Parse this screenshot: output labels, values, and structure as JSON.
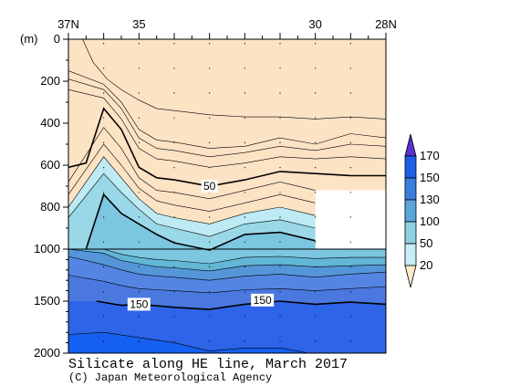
{
  "chart_data": {
    "type": "contour",
    "title": "Silicate along HE line, March 2017",
    "credit": "(C) Japan Meteorological Agency",
    "x_unit_label": "",
    "y_unit_label": "(m)",
    "x_ticks": [
      {
        "lat": 37,
        "label": "37N"
      },
      {
        "lat": 35,
        "label": "35"
      },
      {
        "lat": 30,
        "label": "30"
      },
      {
        "lat": 28,
        "label": "28N"
      }
    ],
    "x_range": [
      37,
      28
    ],
    "y_ticks_upper": [
      0,
      200,
      400,
      600,
      800,
      1000
    ],
    "y_ticks_lower": [
      1500,
      2000
    ],
    "y_range": [
      0,
      2000
    ],
    "stations_lat": [
      36.0,
      35.0,
      34.0,
      33.0,
      32.0,
      31.0,
      30.0,
      29.0
    ],
    "levels": [
      20,
      50,
      100,
      130,
      150,
      170
    ],
    "level_colors": [
      "#FDE8C8",
      "#C7EDF5",
      "#8ED1E3",
      "#5CA6DC",
      "#3A7FE0",
      "#1F5EE8",
      "#5B2FD0"
    ],
    "legend_labels": [
      "170",
      "150",
      "130",
      "100",
      "50",
      "20"
    ],
    "band_colors": [
      "#FCE3C4",
      "#BDEAF3",
      "#9AD8E8",
      "#7CC6E0",
      "#62B6D6",
      "#5496D8",
      "#5585E2",
      "#4A78DF",
      "#2E64E8",
      "#1560F0"
    ],
    "contour_labels": [
      {
        "text": "50",
        "lat": 33.0,
        "depth": 700
      },
      {
        "text": "150",
        "lat": 35.0,
        "depth": 1530
      },
      {
        "text": "150",
        "lat": 31.5,
        "depth": 1490
      }
    ],
    "contours": [
      {
        "value": 20,
        "bold": false,
        "points": [
          [
            36.6,
            0
          ],
          [
            36.3,
            110
          ],
          [
            35.9,
            190
          ],
          [
            35.5,
            240
          ],
          [
            35.0,
            290
          ],
          [
            34.5,
            330
          ],
          [
            34.0,
            340
          ],
          [
            33.0,
            360
          ],
          [
            32.0,
            370
          ],
          [
            31.0,
            370
          ],
          [
            30.0,
            380
          ],
          [
            29.0,
            370
          ],
          [
            28.0,
            380
          ]
        ]
      },
      {
        "value": 30,
        "bold": false,
        "points": [
          [
            37.0,
            150
          ],
          [
            36.0,
            215
          ],
          [
            35.5,
            300
          ],
          [
            35.0,
            430
          ],
          [
            34.5,
            480
          ],
          [
            34.0,
            490
          ],
          [
            33.0,
            520
          ],
          [
            32.0,
            510
          ],
          [
            31.0,
            470
          ],
          [
            30.0,
            500
          ],
          [
            29.0,
            450
          ],
          [
            28.0,
            470
          ]
        ]
      },
      {
        "value": 40,
        "bold": false,
        "points": [
          [
            37.0,
            190
          ],
          [
            36.0,
            240
          ],
          [
            35.5,
            330
          ],
          [
            35.0,
            470
          ],
          [
            34.5,
            520
          ],
          [
            34.0,
            530
          ],
          [
            33.0,
            560
          ],
          [
            32.0,
            540
          ],
          [
            31.0,
            510
          ],
          [
            30.0,
            530
          ],
          [
            29.0,
            500
          ],
          [
            28.0,
            510
          ]
        ]
      },
      {
        "value": 45,
        "bold": false,
        "points": [
          [
            37.0,
            240
          ],
          [
            36.0,
            280
          ],
          [
            35.5,
            380
          ],
          [
            35.0,
            520
          ],
          [
            34.5,
            570
          ],
          [
            34.0,
            580
          ],
          [
            33.0,
            610
          ],
          [
            32.0,
            590
          ],
          [
            31.0,
            560
          ],
          [
            30.0,
            570
          ],
          [
            29.0,
            560
          ],
          [
            28.0,
            570
          ]
        ]
      },
      {
        "value": 50,
        "bold": true,
        "points": [
          [
            37.0,
            610
          ],
          [
            36.5,
            590
          ],
          [
            36.0,
            330
          ],
          [
            35.5,
            430
          ],
          [
            35.0,
            610
          ],
          [
            34.5,
            660
          ],
          [
            34.0,
            670
          ],
          [
            33.0,
            700
          ],
          [
            32.0,
            670
          ],
          [
            31.0,
            630
          ],
          [
            30.0,
            640
          ],
          [
            29.0,
            650
          ],
          [
            28.0,
            650
          ]
        ]
      },
      {
        "value": 60,
        "bold": false,
        "points": [
          [
            37.0,
            680
          ],
          [
            36.0,
            420
          ],
          [
            35.5,
            520
          ],
          [
            35.0,
            660
          ],
          [
            34.5,
            720
          ],
          [
            34.0,
            730
          ],
          [
            33.0,
            760
          ],
          [
            32.0,
            720
          ],
          [
            31.0,
            680
          ],
          [
            30.0,
            720
          ]
        ]
      },
      {
        "value": 70,
        "bold": false,
        "points": [
          [
            37.0,
            740
          ],
          [
            36.0,
            500
          ],
          [
            35.5,
            600
          ],
          [
            35.0,
            710
          ],
          [
            34.5,
            770
          ],
          [
            34.0,
            790
          ],
          [
            33.0,
            820
          ],
          [
            32.0,
            780
          ],
          [
            31.0,
            740
          ],
          [
            30.0,
            780
          ]
        ]
      },
      {
        "value": 80,
        "bold": false,
        "points": [
          [
            37.0,
            800
          ],
          [
            36.0,
            560
          ],
          [
            35.5,
            660
          ],
          [
            35.0,
            760
          ],
          [
            34.5,
            830
          ],
          [
            34.0,
            850
          ],
          [
            33.0,
            880
          ],
          [
            32.0,
            830
          ],
          [
            31.0,
            800
          ],
          [
            30.0,
            840
          ]
        ]
      },
      {
        "value": 90,
        "bold": false,
        "points": [
          [
            37.0,
            850
          ],
          [
            36.0,
            640
          ],
          [
            35.5,
            730
          ],
          [
            35.0,
            810
          ],
          [
            34.5,
            880
          ],
          [
            34.0,
            900
          ],
          [
            33.0,
            940
          ],
          [
            32.0,
            880
          ],
          [
            31.0,
            860
          ],
          [
            30.0,
            900
          ]
        ]
      },
      {
        "value": 100,
        "bold": true,
        "points": [
          [
            36.5,
            1000
          ],
          [
            36.0,
            740
          ],
          [
            35.5,
            830
          ],
          [
            35.0,
            880
          ],
          [
            34.5,
            930
          ],
          [
            34.0,
            970
          ],
          [
            33.0,
            1010
          ],
          [
            32.0,
            930
          ],
          [
            31.0,
            920
          ],
          [
            30.0,
            960
          ]
        ]
      },
      {
        "value": 110,
        "bold": false,
        "points": [
          [
            37.0,
            1000
          ],
          [
            36.0,
            1000
          ],
          [
            35.5,
            1050
          ],
          [
            35.0,
            1080
          ],
          [
            34.5,
            1100
          ],
          [
            34.0,
            1110
          ],
          [
            33.0,
            1140
          ],
          [
            32.0,
            1080
          ],
          [
            31.0,
            1070
          ],
          [
            30.0,
            1090
          ],
          [
            29.0,
            1080
          ],
          [
            28.0,
            1080
          ]
        ]
      },
      {
        "value": 120,
        "bold": false,
        "points": [
          [
            37.0,
            1000
          ],
          [
            36.0,
            1040
          ],
          [
            35.5,
            1110
          ],
          [
            35.0,
            1140
          ],
          [
            34.5,
            1170
          ],
          [
            34.0,
            1180
          ],
          [
            33.0,
            1210
          ],
          [
            32.0,
            1160
          ],
          [
            31.0,
            1150
          ],
          [
            30.0,
            1170
          ],
          [
            29.0,
            1160
          ],
          [
            28.0,
            1150
          ]
        ]
      },
      {
        "value": 130,
        "bold": false,
        "points": [
          [
            37.0,
            1070
          ],
          [
            36.0,
            1150
          ],
          [
            35.5,
            1200
          ],
          [
            35.0,
            1240
          ],
          [
            34.5,
            1260
          ],
          [
            34.0,
            1270
          ],
          [
            33.0,
            1300
          ],
          [
            32.0,
            1260
          ],
          [
            31.0,
            1240
          ],
          [
            30.0,
            1270
          ],
          [
            29.0,
            1240
          ],
          [
            28.0,
            1220
          ]
        ]
      },
      {
        "value": 140,
        "bold": false,
        "points": [
          [
            37.0,
            1250
          ],
          [
            36.0,
            1310
          ],
          [
            35.5,
            1350
          ],
          [
            35.0,
            1380
          ],
          [
            34.5,
            1390
          ],
          [
            34.0,
            1400
          ],
          [
            33.0,
            1420
          ],
          [
            32.0,
            1390
          ],
          [
            31.0,
            1380
          ],
          [
            30.0,
            1400
          ],
          [
            29.0,
            1380
          ],
          [
            28.0,
            1360
          ]
        ]
      },
      {
        "value": 150,
        "bold": true,
        "points": [
          [
            36.2,
            1500
          ],
          [
            35.5,
            1540
          ],
          [
            35.0,
            1530
          ],
          [
            34.0,
            1560
          ],
          [
            33.0,
            1580
          ],
          [
            32.0,
            1530
          ],
          [
            31.0,
            1500
          ],
          [
            30.0,
            1530
          ],
          [
            29.0,
            1510
          ],
          [
            28.0,
            1530
          ]
        ]
      },
      {
        "value": 155,
        "bold": false,
        "points": [
          [
            37.0,
            1820
          ],
          [
            36.0,
            1800
          ],
          [
            35.0,
            1850
          ],
          [
            34.0,
            1900
          ],
          [
            33.0,
            1980
          ],
          [
            32.0,
            1950
          ],
          [
            31.0,
            1950
          ],
          [
            30.5,
            1980
          ],
          [
            30.2,
            2000
          ]
        ]
      }
    ],
    "mask": {
      "lat_from": 30.0,
      "lat_to": 28.0,
      "depth_from": 720,
      "depth_to": 1000,
      "color": "#ffffff"
    }
  }
}
